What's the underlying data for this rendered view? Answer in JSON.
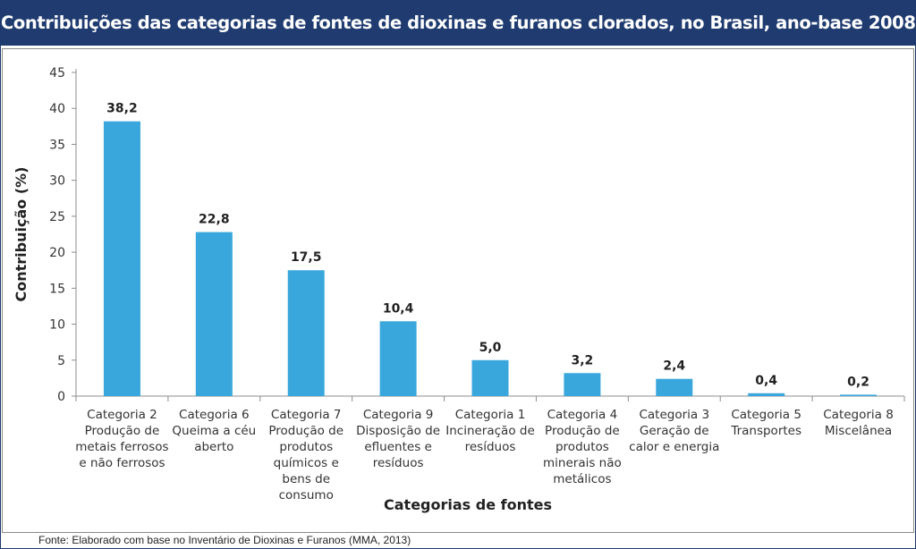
{
  "header": {
    "title": "Contribuições das categorias de fontes de dioxinas e furanos clorados, no Brasil, ano-base 2008."
  },
  "footer": {
    "source": "Fonte: Elaborado com base no Inventário de Dioxinas e Furanos (MMA, 2013)"
  },
  "colors": {
    "header_bg": "#1f3b70",
    "bar": "#3aa7dc"
  },
  "chart_data": {
    "type": "bar",
    "xlabel": "Categorias de fontes",
    "ylabel": "Contribuição (%)",
    "ylim": [
      0,
      45
    ],
    "yticks": [
      "0",
      "5",
      "10",
      "15",
      "20",
      "25",
      "30",
      "35",
      "40",
      "45"
    ],
    "grid": false,
    "categories": [
      [
        "Categoria 2",
        "Produção de",
        "metais ferrosos",
        "e não ferrosos"
      ],
      [
        "Categoria 6",
        "Queima a céu",
        "aberto"
      ],
      [
        "Categoria 7",
        "Produção de",
        "produtos",
        "químicos e",
        "bens de",
        "consumo"
      ],
      [
        "Categoria 9",
        "Disposição de",
        "efluentes e",
        "resíduos"
      ],
      [
        "Categoria 1",
        "Incineração de",
        "resíduos"
      ],
      [
        "Categoria 4",
        "Produção de",
        "produtos",
        "minerais não",
        "metálicos"
      ],
      [
        "Categoria 3",
        "Geração de",
        "calor e energia"
      ],
      [
        "Categoria 5",
        "Transportes"
      ],
      [
        "Categoria 8",
        "Miscelânea"
      ]
    ],
    "values": [
      38.2,
      22.8,
      17.5,
      10.4,
      5.0,
      3.2,
      2.4,
      0.4,
      0.2
    ],
    "value_labels": [
      "38,2",
      "22,8",
      "17,5",
      "10,4",
      "5,0",
      "3,2",
      "2,4",
      "0,4",
      "0,2"
    ]
  }
}
